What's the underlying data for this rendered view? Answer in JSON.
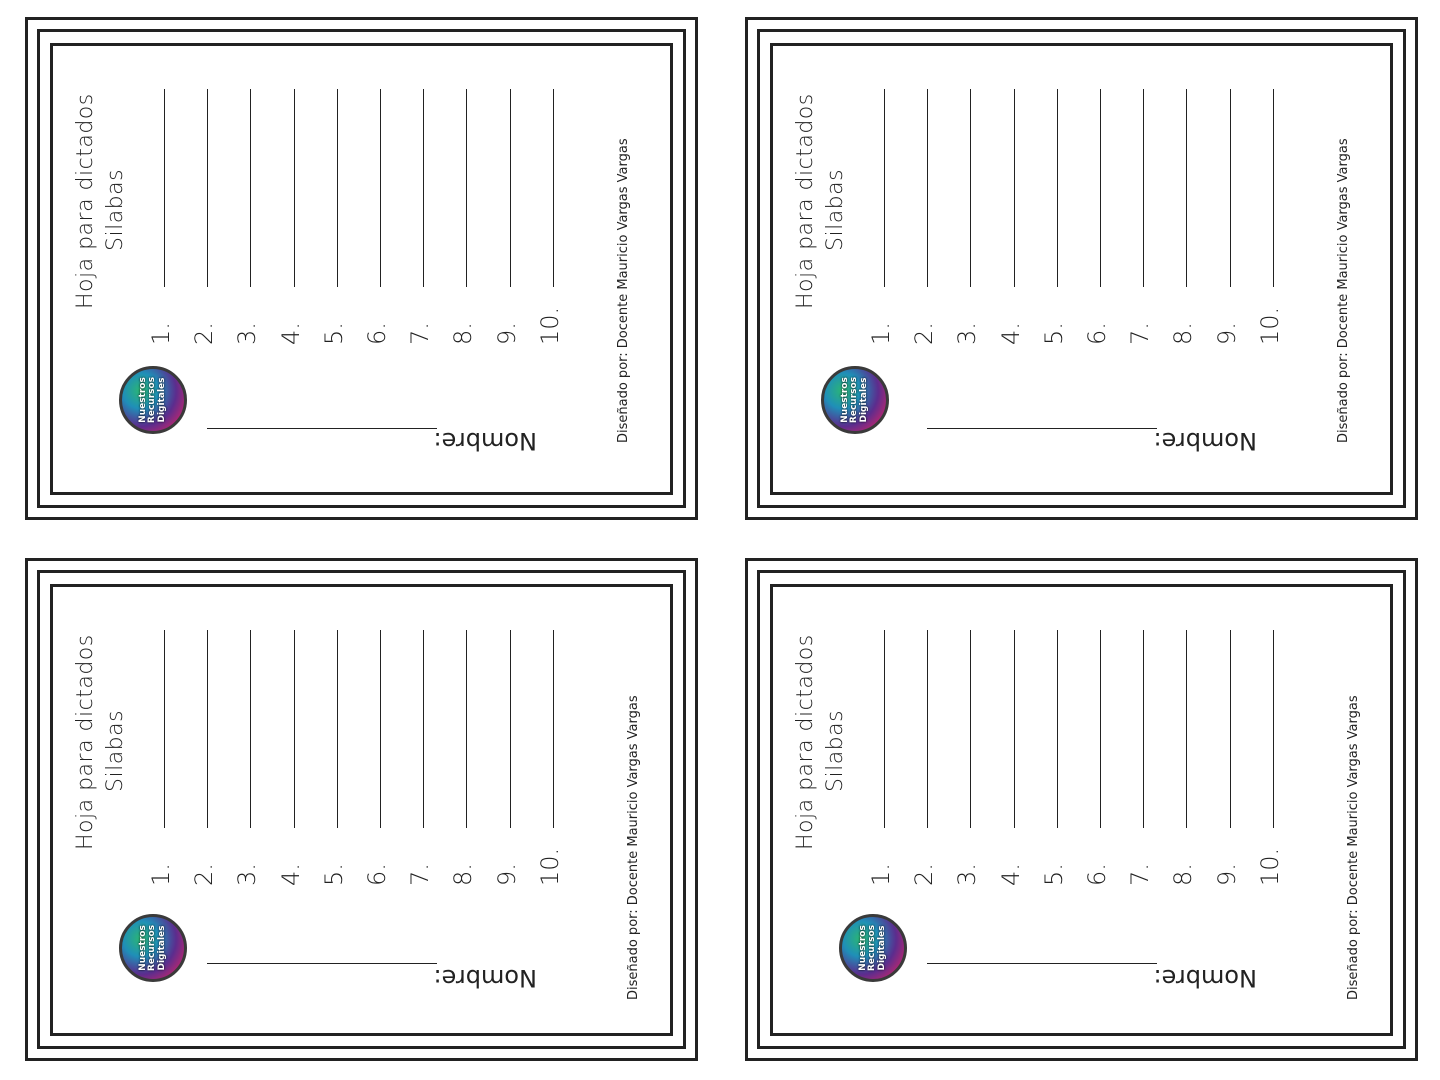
{
  "sheet": {
    "title_line1": "Hoja para dictados",
    "title_line2": "Silabas",
    "numbers": [
      "1.",
      "2.",
      "3.",
      "4.",
      "5.",
      "6.",
      "7.",
      "8.",
      "9.",
      "10."
    ],
    "name_label": "Nombre:",
    "credit": "Diseñado por: Docente Mauricio Vargas Vargas",
    "logo_lines": [
      "Nuestros",
      "Recursos",
      "Digitales"
    ],
    "logo_icon": "nuestros-recursos-digitales-logo"
  },
  "colors": {
    "ink": "#222222",
    "paper": "#ffffff"
  }
}
